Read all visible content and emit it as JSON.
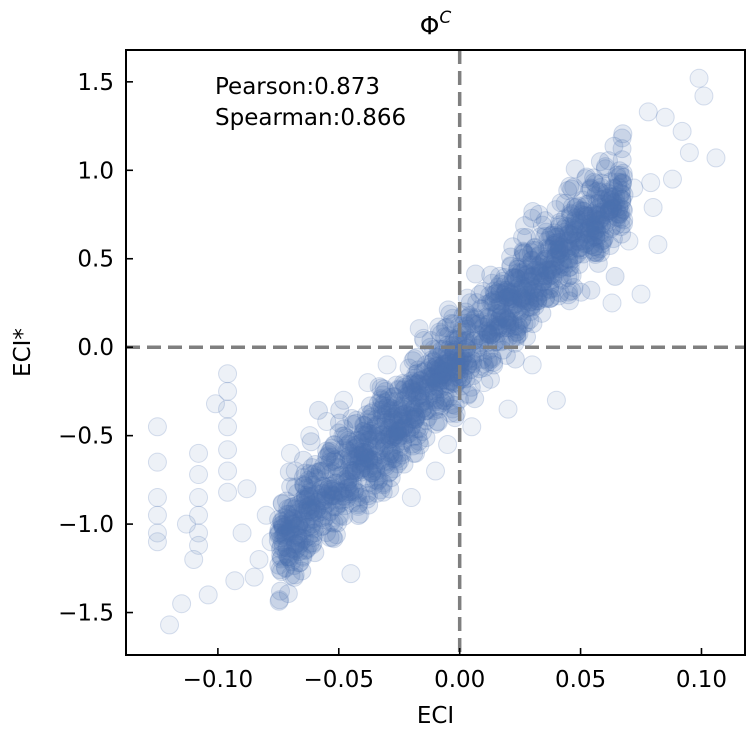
{
  "chart_data": {
    "type": "scatter",
    "title_base": "Φ",
    "title_sup": "C",
    "xlabel": "ECI",
    "ylabel": "ECI*",
    "xlim": [
      -0.138,
      0.118
    ],
    "ylim": [
      -1.74,
      1.68
    ],
    "xticks": [
      -0.1,
      -0.05,
      0.0,
      0.05,
      0.1
    ],
    "xtick_labels": [
      "−0.10",
      "−0.05",
      "0.00",
      "0.05",
      "0.10"
    ],
    "yticks": [
      -1.5,
      -1.0,
      -0.5,
      0.0,
      0.5,
      1.0,
      1.5
    ],
    "ytick_labels": [
      "−1.5",
      "−1.0",
      "−0.5",
      "0.0",
      "0.5",
      "1.0",
      "1.5"
    ],
    "annotations": [
      "Pearson:0.873",
      "Spearman:0.866"
    ],
    "reference_lines": {
      "x": 0.0,
      "y": 0.0
    },
    "grid": false,
    "marker_color": "#4c72b0",
    "reference_line_color": "#7f7f7f",
    "points": [
      [
        -0.125,
        -0.45
      ],
      [
        -0.125,
        -0.65
      ],
      [
        -0.125,
        -0.85
      ],
      [
        -0.125,
        -0.95
      ],
      [
        -0.125,
        -1.05
      ],
      [
        -0.125,
        -1.1
      ],
      [
        -0.12,
        -1.57
      ],
      [
        -0.115,
        -1.45
      ],
      [
        -0.11,
        -1.2
      ],
      [
        -0.113,
        -1.0
      ],
      [
        -0.108,
        -0.6
      ],
      [
        -0.108,
        -0.72
      ],
      [
        -0.108,
        -0.85
      ],
      [
        -0.108,
        -0.95
      ],
      [
        -0.108,
        -1.05
      ],
      [
        -0.108,
        -1.12
      ],
      [
        -0.104,
        -1.4
      ],
      [
        -0.101,
        -0.32
      ],
      [
        -0.096,
        -0.15
      ],
      [
        -0.096,
        -0.25
      ],
      [
        -0.096,
        -0.35
      ],
      [
        -0.096,
        -0.45
      ],
      [
        -0.096,
        -0.58
      ],
      [
        -0.096,
        -0.7
      ],
      [
        -0.096,
        -0.82
      ],
      [
        -0.093,
        -1.32
      ],
      [
        -0.09,
        -1.05
      ],
      [
        -0.088,
        -0.8
      ],
      [
        -0.085,
        -1.3
      ],
      [
        -0.083,
        -1.2
      ],
      [
        -0.08,
        -0.95
      ],
      [
        -0.078,
        -1.1
      ],
      [
        -0.072,
        -1.25
      ],
      [
        -0.07,
        -0.6
      ],
      [
        -0.068,
        -0.7
      ],
      [
        -0.065,
        -1.18
      ],
      [
        -0.062,
        -0.5
      ],
      [
        -0.06,
        -1.05
      ],
      [
        -0.055,
        -0.42
      ],
      [
        -0.05,
        -0.95
      ],
      [
        -0.048,
        -0.3
      ],
      [
        -0.045,
        -1.28
      ],
      [
        -0.042,
        -0.9
      ],
      [
        -0.038,
        -0.2
      ],
      [
        -0.035,
        -0.75
      ],
      [
        -0.03,
        -0.1
      ],
      [
        -0.028,
        -0.6
      ],
      [
        -0.02,
        -0.85
      ],
      [
        -0.015,
        0.05
      ],
      [
        -0.01,
        -0.7
      ],
      [
        -0.005,
        -0.55
      ],
      [
        0.0,
        0.12
      ],
      [
        0.005,
        -0.45
      ],
      [
        0.01,
        -0.2
      ],
      [
        0.015,
        0.25
      ],
      [
        0.02,
        -0.35
      ],
      [
        0.025,
        0.35
      ],
      [
        0.03,
        -0.1
      ],
      [
        0.035,
        0.45
      ],
      [
        0.04,
        -0.3
      ],
      [
        0.045,
        0.5
      ],
      [
        0.048,
        0.7
      ],
      [
        0.055,
        0.55
      ],
      [
        0.06,
        0.65
      ],
      [
        0.063,
        0.25
      ],
      [
        0.066,
        0.85
      ],
      [
        0.07,
        0.6
      ],
      [
        0.072,
        0.9
      ],
      [
        0.075,
        0.3
      ],
      [
        0.079,
        0.93
      ],
      [
        0.082,
        0.58
      ],
      [
        0.085,
        1.3
      ],
      [
        0.088,
        0.95
      ],
      [
        0.092,
        1.22
      ],
      [
        0.095,
        1.1
      ],
      [
        0.099,
        1.52
      ],
      [
        0.101,
        1.42
      ],
      [
        0.106,
        1.07
      ],
      [
        0.078,
        1.33
      ],
      [
        0.08,
        0.79
      ]
    ]
  }
}
